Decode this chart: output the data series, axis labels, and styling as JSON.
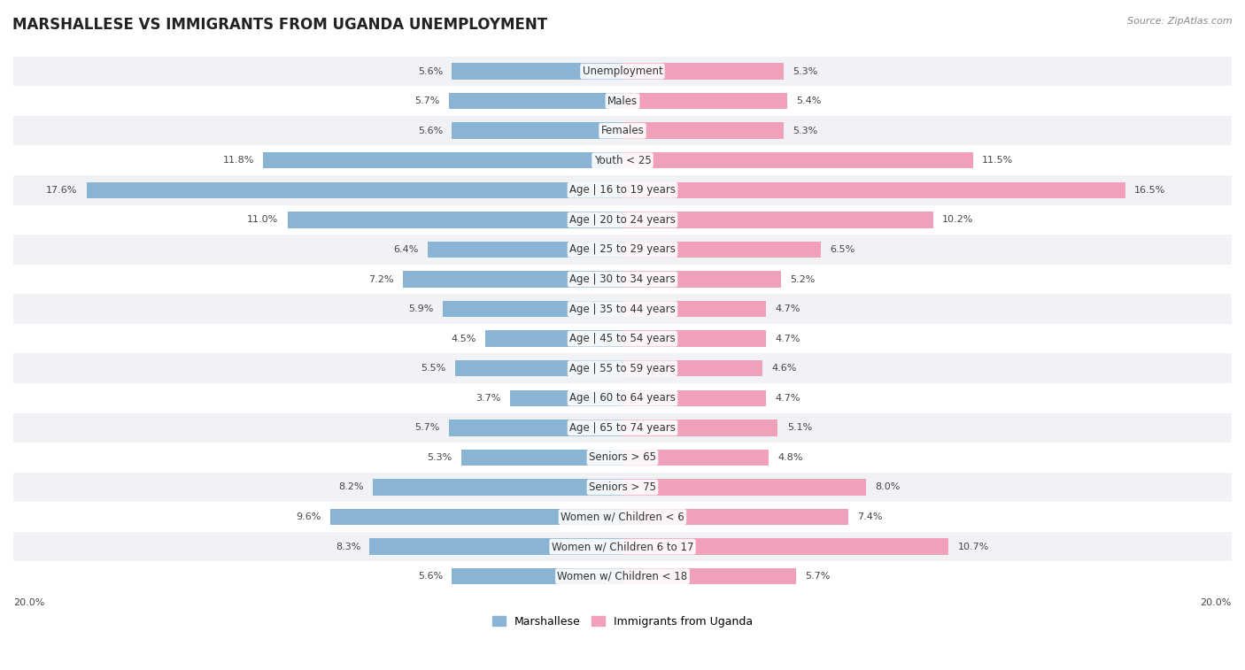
{
  "title": "MARSHALLESE VS IMMIGRANTS FROM UGANDA UNEMPLOYMENT",
  "source": "Source: ZipAtlas.com",
  "categories": [
    "Unemployment",
    "Males",
    "Females",
    "Youth < 25",
    "Age | 16 to 19 years",
    "Age | 20 to 24 years",
    "Age | 25 to 29 years",
    "Age | 30 to 34 years",
    "Age | 35 to 44 years",
    "Age | 45 to 54 years",
    "Age | 55 to 59 years",
    "Age | 60 to 64 years",
    "Age | 65 to 74 years",
    "Seniors > 65",
    "Seniors > 75",
    "Women w/ Children < 6",
    "Women w/ Children 6 to 17",
    "Women w/ Children < 18"
  ],
  "marshallese": [
    5.6,
    5.7,
    5.6,
    11.8,
    17.6,
    11.0,
    6.4,
    7.2,
    5.9,
    4.5,
    5.5,
    3.7,
    5.7,
    5.3,
    8.2,
    9.6,
    8.3,
    5.6
  ],
  "uganda": [
    5.3,
    5.4,
    5.3,
    11.5,
    16.5,
    10.2,
    6.5,
    5.2,
    4.7,
    4.7,
    4.6,
    4.7,
    5.1,
    4.8,
    8.0,
    7.4,
    10.7,
    5.7
  ],
  "marshallese_color": "#8ab4d4",
  "uganda_color": "#f0a0b8",
  "xlim": 20.0,
  "fig_bg": "#ffffff",
  "row_bg_odd": "#f0f2f5",
  "row_bg_even": "#ffffff",
  "title_fontsize": 12,
  "source_fontsize": 8,
  "label_fontsize": 8.5,
  "value_fontsize": 8,
  "legend_labels": [
    "Marshallese",
    "Immigrants from Uganda"
  ],
  "x_edge_label": "20.0%"
}
